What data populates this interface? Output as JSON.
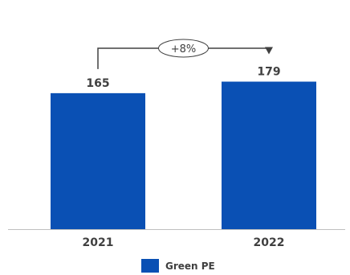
{
  "chart_data": {
    "type": "bar",
    "categories": [
      "2021",
      "2022"
    ],
    "series": [
      {
        "name": "Green PE",
        "values": [
          165,
          179
        ]
      }
    ],
    "data_labels": [
      "165",
      "179"
    ],
    "ylim": [
      0,
      200
    ],
    "grid": false,
    "legend_position": "bottom",
    "annotation": {
      "text": "+8%",
      "from": "2021",
      "to": "2022"
    },
    "colors": {
      "bar": "#0a50b4",
      "axis": "#bfbfbf",
      "annotation": "#404040"
    }
  }
}
